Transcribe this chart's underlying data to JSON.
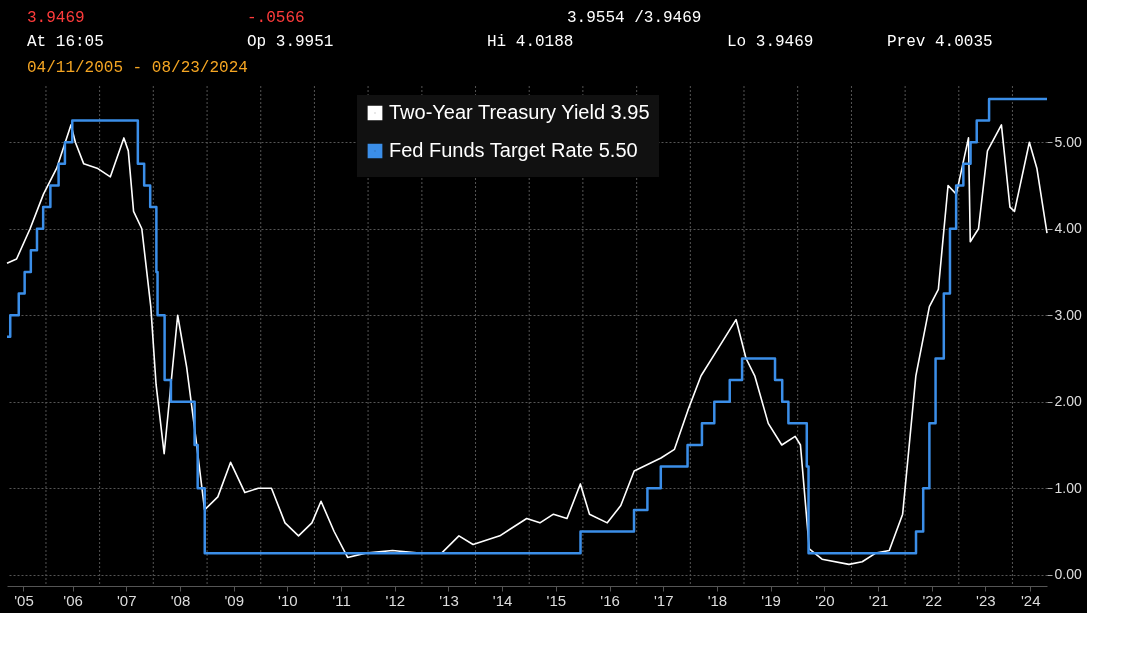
{
  "chart_data": {
    "type": "line",
    "annotations": [
      "3.9469",
      "-.0566",
      "3.9554 /3.9469",
      "At 16:05",
      "Op 3.9951",
      "Hi 4.0188",
      "Lo 3.9469",
      "Prev 4.0035",
      "04/11/2005 - 08/23/2024"
    ],
    "series": [
      {
        "name": "Two-Year Treasury Yield 3.95",
        "color": "#ffffff",
        "x": [
          "2005-04-11",
          "2005-06-15",
          "2005-09-15",
          "2005-12-15",
          "2006-03-15",
          "2006-06-20",
          "2006-07-20",
          "2006-09-15",
          "2006-12-15",
          "2007-03-15",
          "2007-06-15",
          "2007-07-15",
          "2007-08-20",
          "2007-10-15",
          "2007-12-15",
          "2008-01-20",
          "2008-03-15",
          "2008-06-15",
          "2008-08-15",
          "2008-10-15",
          "2008-12-15",
          "2009-03-15",
          "2009-06-10",
          "2009-09-15",
          "2009-12-15",
          "2010-03-15",
          "2010-06-15",
          "2010-09-15",
          "2010-12-15",
          "2011-02-15",
          "2011-05-15",
          "2011-08-15",
          "2011-12-15",
          "2012-06-15",
          "2012-12-15",
          "2013-05-15",
          "2013-09-10",
          "2013-12-15",
          "2014-06-15",
          "2014-12-15",
          "2015-03-15",
          "2015-06-15",
          "2015-09-15",
          "2015-12-15",
          "2016-02-15",
          "2016-06-15",
          "2016-09-15",
          "2016-12-15",
          "2017-06-15",
          "2017-09-15",
          "2017-12-15",
          "2018-03-15",
          "2018-06-15",
          "2018-11-08",
          "2019-01-15",
          "2019-03-15",
          "2019-06-15",
          "2019-09-15",
          "2019-12-15",
          "2020-01-20",
          "2020-03-20",
          "2020-06-15",
          "2020-12-15",
          "2021-03-15",
          "2021-06-15",
          "2021-09-15",
          "2021-12-15",
          "2022-03-15",
          "2022-06-15",
          "2022-08-15",
          "2022-10-20",
          "2022-12-15",
          "2023-03-08",
          "2023-03-20",
          "2023-05-15",
          "2023-07-15",
          "2023-10-18",
          "2023-12-15",
          "2024-01-15",
          "2024-04-25",
          "2024-06-15",
          "2024-08-23"
        ],
        "values": [
          3.6,
          3.65,
          4.0,
          4.4,
          4.7,
          5.2,
          5.0,
          4.75,
          4.7,
          4.6,
          5.05,
          4.9,
          4.2,
          4.0,
          3.1,
          2.2,
          1.4,
          3.0,
          2.4,
          1.6,
          0.75,
          0.9,
          1.3,
          0.95,
          1.0,
          1.0,
          0.6,
          0.45,
          0.6,
          0.85,
          0.5,
          0.2,
          0.25,
          0.28,
          0.25,
          0.25,
          0.45,
          0.35,
          0.45,
          0.65,
          0.6,
          0.7,
          0.65,
          1.05,
          0.7,
          0.6,
          0.8,
          1.2,
          1.35,
          1.45,
          1.9,
          2.3,
          2.55,
          2.95,
          2.5,
          2.3,
          1.75,
          1.5,
          1.6,
          1.5,
          0.3,
          0.18,
          0.12,
          0.15,
          0.25,
          0.28,
          0.7,
          2.3,
          3.1,
          3.3,
          4.5,
          4.4,
          5.05,
          3.85,
          4.0,
          4.9,
          5.2,
          4.25,
          4.2,
          5.0,
          4.7,
          3.95
        ]
      },
      {
        "name": "Fed Funds Target Rate 5.50",
        "color": "#3b8ee8",
        "type": "step",
        "x": [
          "2005-04-11",
          "2005-05-03",
          "2005-06-30",
          "2005-08-09",
          "2005-09-20",
          "2005-11-01",
          "2005-12-13",
          "2006-01-31",
          "2006-03-28",
          "2006-05-10",
          "2006-06-29",
          "2007-09-18",
          "2007-10-31",
          "2007-12-11",
          "2008-01-22",
          "2008-01-30",
          "2008-03-18",
          "2008-04-30",
          "2008-10-08",
          "2008-10-29",
          "2008-12-16",
          "2015-12-16",
          "2016-12-14",
          "2017-03-15",
          "2017-06-14",
          "2017-12-13",
          "2018-03-21",
          "2018-06-13",
          "2018-09-26",
          "2018-12-19",
          "2019-07-31",
          "2019-09-18",
          "2019-10-30",
          "2020-03-03",
          "2020-03-15",
          "2022-03-16",
          "2022-05-04",
          "2022-06-15",
          "2022-07-27",
          "2022-09-21",
          "2022-11-02",
          "2022-12-14",
          "2023-02-01",
          "2023-03-22",
          "2023-05-03",
          "2023-07-26",
          "2024-08-23"
        ],
        "values": [
          2.75,
          3.0,
          3.25,
          3.5,
          3.75,
          4.0,
          4.25,
          4.5,
          4.75,
          5.0,
          5.25,
          4.75,
          4.5,
          4.25,
          3.5,
          3.0,
          2.25,
          2.0,
          1.5,
          1.0,
          0.25,
          0.5,
          0.75,
          1.0,
          1.25,
          1.5,
          1.75,
          2.0,
          2.25,
          2.5,
          2.25,
          2.0,
          1.75,
          1.25,
          0.25,
          0.5,
          1.0,
          1.75,
          2.5,
          3.25,
          4.0,
          4.5,
          4.75,
          5.0,
          5.25,
          5.5,
          5.5
        ]
      }
    ],
    "xlim": [
      "2005-04-11",
      "2024-08-23"
    ],
    "xticks": [
      {
        "value": "2006-01-01",
        "label": null
      },
      {
        "value": "2007-01-01",
        "label": null
      },
      {
        "value": "2008-01-01",
        "label": null
      },
      {
        "value": "2009-01-01",
        "label": null
      },
      {
        "value": "2010-01-01",
        "label": null
      },
      {
        "value": "2011-01-01",
        "label": null
      },
      {
        "value": "2012-01-01",
        "label": null
      },
      {
        "value": "2013-01-01",
        "label": null
      },
      {
        "value": "2014-01-01",
        "label": null
      },
      {
        "value": "2015-01-01",
        "label": null
      },
      {
        "value": "2016-01-01",
        "label": null
      },
      {
        "value": "2017-01-01",
        "label": null
      },
      {
        "value": "2018-01-01",
        "label": null
      },
      {
        "value": "2019-01-01",
        "label": null
      },
      {
        "value": "2020-01-01",
        "label": null
      },
      {
        "value": "2021-01-01",
        "label": null
      },
      {
        "value": "2022-01-01",
        "label": null
      },
      {
        "value": "2023-01-01",
        "label": null
      },
      {
        "value": "2024-01-01",
        "label": null
      },
      {
        "value": "2005-08-01",
        "label": "'05"
      },
      {
        "value": "2006-07-01",
        "label": "'06"
      },
      {
        "value": "2007-07-01",
        "label": "'07"
      },
      {
        "value": "2008-07-01",
        "label": "'08"
      },
      {
        "value": "2009-07-01",
        "label": "'09"
      },
      {
        "value": "2010-07-01",
        "label": "'10"
      },
      {
        "value": "2011-07-01",
        "label": "'11"
      },
      {
        "value": "2012-07-01",
        "label": "'12"
      },
      {
        "value": "2013-07-01",
        "label": "'13"
      },
      {
        "value": "2014-07-01",
        "label": "'14"
      },
      {
        "value": "2015-07-01",
        "label": "'15"
      },
      {
        "value": "2016-07-01",
        "label": "'16"
      },
      {
        "value": "2017-07-01",
        "label": "'17"
      },
      {
        "value": "2018-07-01",
        "label": "'18"
      },
      {
        "value": "2019-07-01",
        "label": "'19"
      },
      {
        "value": "2020-07-01",
        "label": "'20"
      },
      {
        "value": "2021-07-01",
        "label": "'21"
      },
      {
        "value": "2022-07-01",
        "label": "'22"
      },
      {
        "value": "2023-07-01",
        "label": "'23"
      },
      {
        "value": "2024-05-01",
        "label": "'24"
      }
    ],
    "ylim": [
      -0.13,
      5.65
    ],
    "yticks": [
      {
        "value": 0,
        "label": "0.00"
      },
      {
        "value": 1,
        "label": "1.00"
      },
      {
        "value": 2,
        "label": "2.00"
      },
      {
        "value": 3,
        "label": "3.00"
      },
      {
        "value": 4,
        "label": "4.00"
      },
      {
        "value": 5,
        "label": "5.00"
      }
    ],
    "grid": true,
    "legend": "top"
  }
}
